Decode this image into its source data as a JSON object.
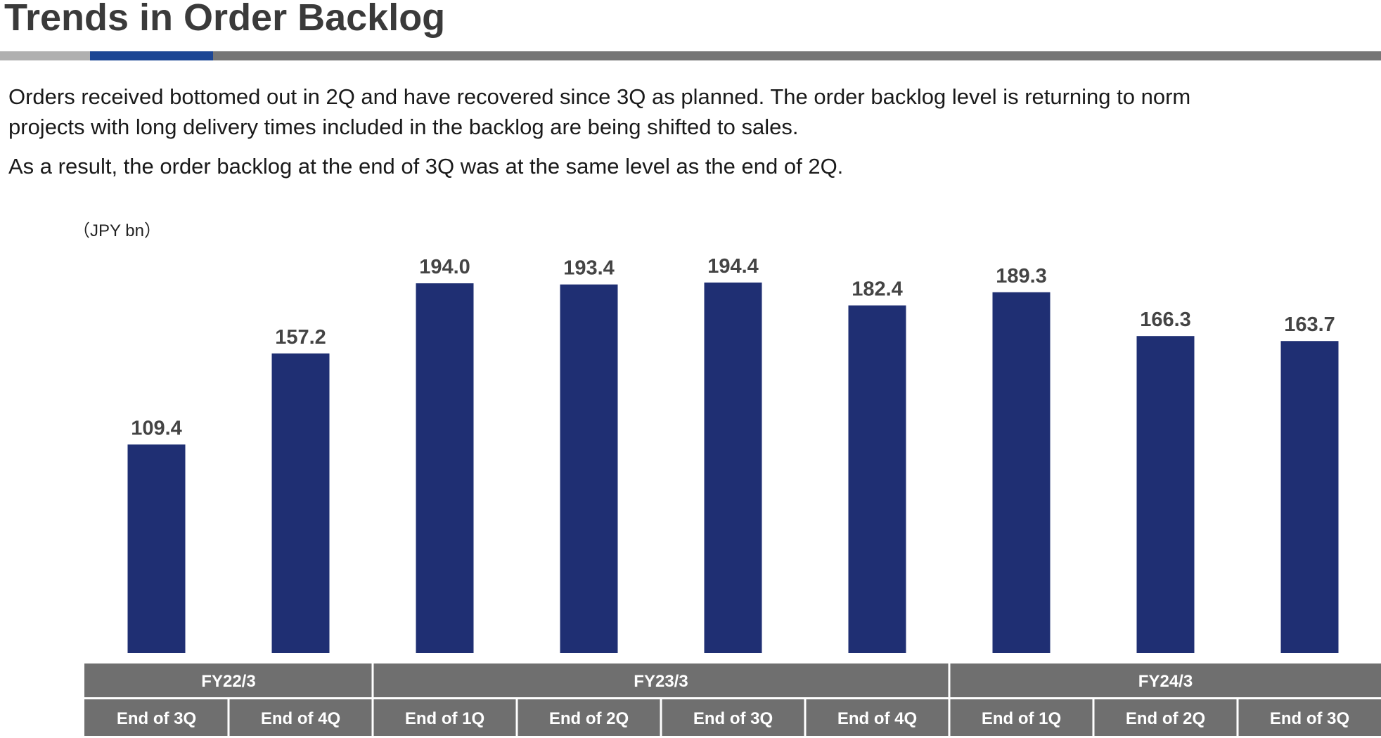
{
  "header": {
    "title": "Trends in Order Backlog"
  },
  "description": {
    "line1": "Orders received bottomed out in 2Q and have recovered since 3Q as planned. The order backlog level is returning to norm",
    "line2": "projects with long delivery times included in the backlog are being shifted to sales.",
    "line3": "As a result, the order backlog at the end of 3Q was at the same level as the end of 2Q."
  },
  "colors": {
    "bar": "#1f2f73",
    "header_cell": "#6f6f6f",
    "accent": "#1d4694"
  },
  "chart_data": {
    "type": "bar",
    "unit_label": "（JPY bn）",
    "groups": [
      {
        "label": "FY22/3",
        "span": 2
      },
      {
        "label": "FY23/3",
        "span": 4
      },
      {
        "label": "FY24/3",
        "span": 3
      }
    ],
    "categories": [
      "End of 3Q",
      "End of 4Q",
      "End of 1Q",
      "End of 2Q",
      "End of 3Q",
      "End of 4Q",
      "End of 1Q",
      "End of 2Q",
      "End of 3Q"
    ],
    "values": [
      109.4,
      157.2,
      194.0,
      193.4,
      194.4,
      182.4,
      189.3,
      166.3,
      163.7
    ],
    "value_labels": [
      "109.4",
      "157.2",
      "194.0",
      "193.4",
      "194.4",
      "182.4",
      "189.3",
      "166.3",
      "163.7"
    ],
    "ylim": [
      0,
      194.4
    ],
    "grid": false,
    "legend": "none"
  }
}
